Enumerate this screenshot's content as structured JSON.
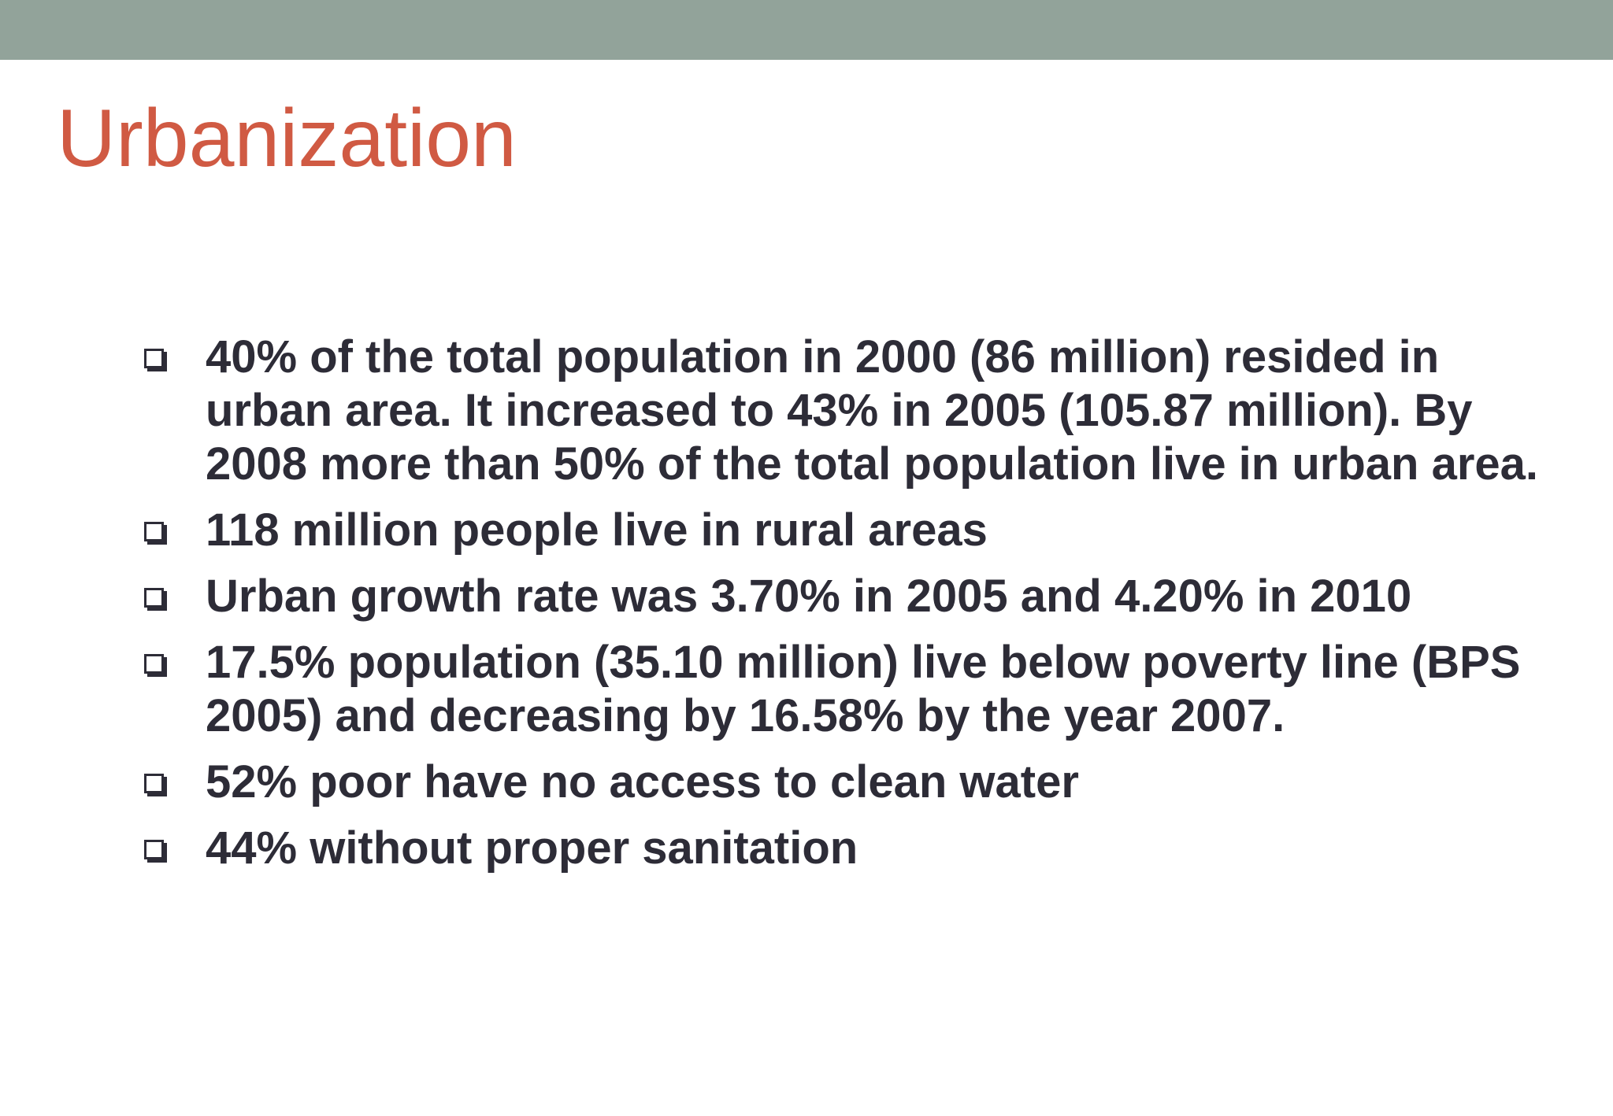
{
  "slide": {
    "title": "Urbanization",
    "accent_color": "#d05a43",
    "band_color": "#92a39a",
    "bullet_icon": "checkbox-square-icon",
    "bullets": [
      {
        "text": "40% of the total population in 2000 (86 million) resided in urban area. It increased to 43% in 2005 (105.87 million). By 2008 more than 50% of the total population live in urban area."
      },
      {
        "text": "118 million people live in rural areas"
      },
      {
        "text": "Urban growth rate was 3.70% in 2005 and 4.20% in  2010"
      },
      {
        "text": "17.5% population (35.10 million) live below poverty line (BPS 2005) and decreasing by 16.58% by the year 2007."
      },
      {
        "text": "52% poor have no access to clean water"
      },
      {
        "text": "44% without proper sanitation"
      }
    ]
  }
}
